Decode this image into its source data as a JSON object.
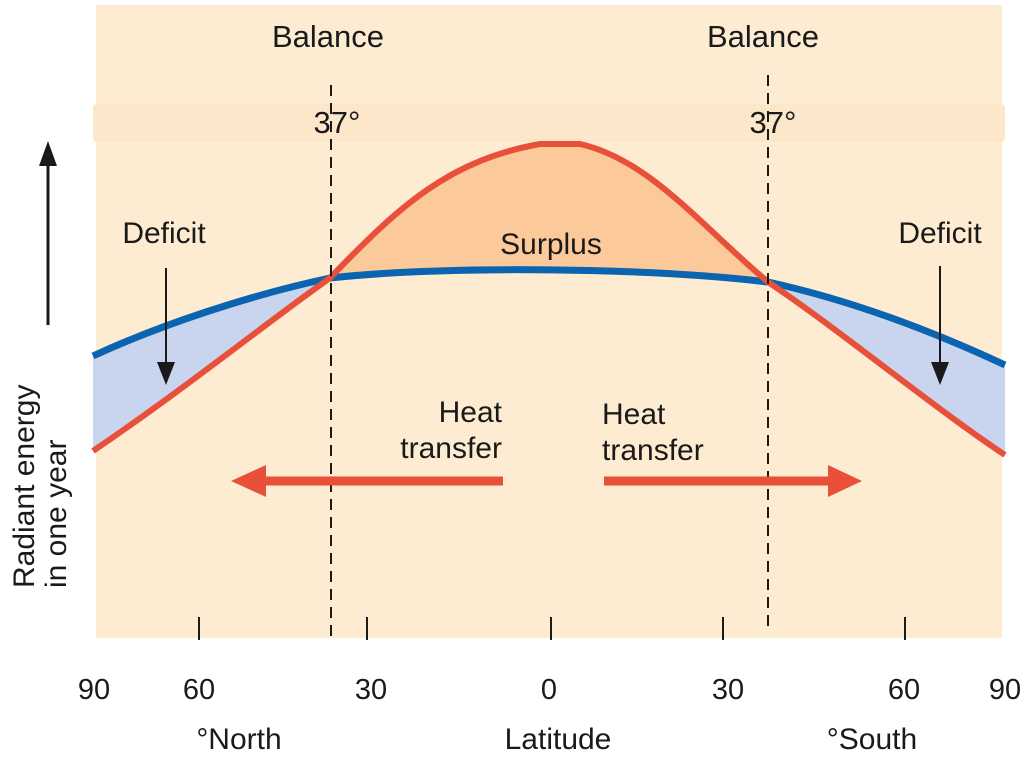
{
  "title_left": "Balance",
  "title_right": "Balance",
  "balance_deg_left": "37°",
  "balance_deg_right": "37°",
  "labels": {
    "deficit_left": "Deficit",
    "deficit_right": "Deficit",
    "surplus": "Surplus",
    "heat_left_1": "Heat",
    "heat_left_2": "transfer",
    "heat_right_1": "Heat",
    "heat_right_2": "transfer"
  },
  "y_axis": {
    "line1": "Radiant energy",
    "line2": "in one year"
  },
  "x_axis": {
    "ticks": [
      "90",
      "60",
      "30",
      "0",
      "30",
      "60",
      "90"
    ],
    "north": "°North",
    "center": "Latitude",
    "south": "°South"
  },
  "colors": {
    "background": "#fdebd2",
    "band": "#fde7cb",
    "incoming": "#e8503a",
    "outgoing": "#0a64b0",
    "deficit_fill": "#c9d5ef",
    "surplus_fill": "#fbc99a"
  },
  "chart_data": {
    "type": "line",
    "x": [
      90,
      60,
      37,
      30,
      0,
      30,
      37,
      60,
      90
    ],
    "series": [],
    "xlabel": "Latitude",
    "ylabel": "Radiant energy in one year",
    "annotations": [
      "Deficit",
      "Surplus",
      "Deficit",
      "Heat transfer",
      "Heat transfer",
      "Balance",
      "Balance",
      "37°",
      "37°"
    ]
  }
}
